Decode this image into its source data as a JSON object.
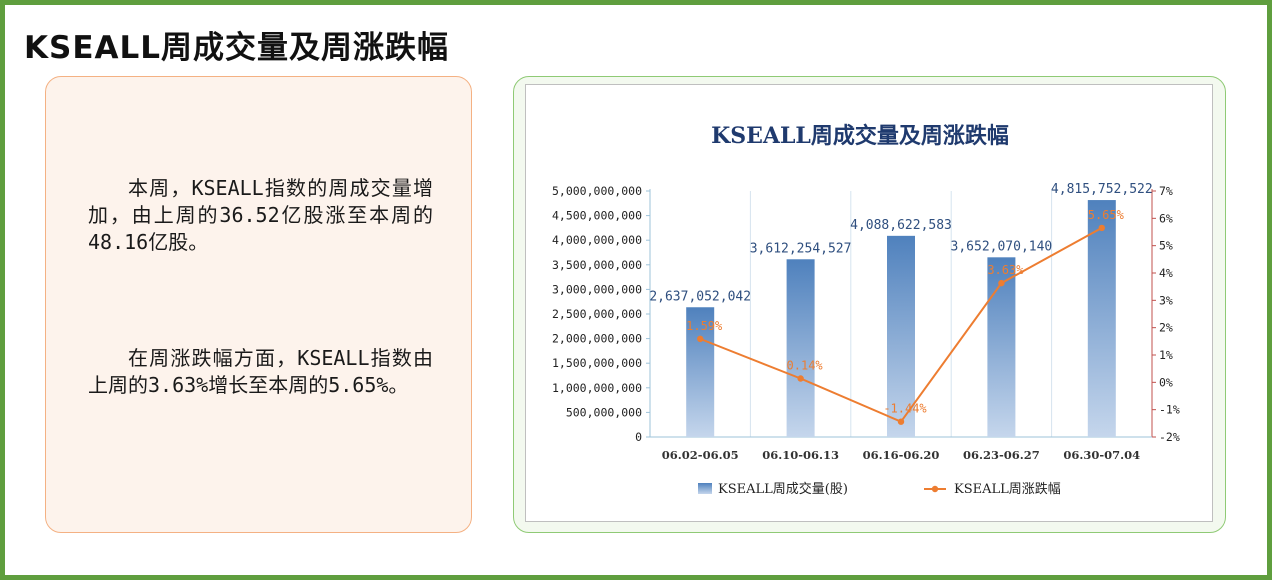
{
  "page": {
    "title": "KSEALL周成交量及周涨跌幅"
  },
  "commentary": {
    "paragraph_1": "本周，KSEALL指数的周成交量增加，由上周的36.52亿股涨至本周的48.16亿股。",
    "paragraph_2": "在周涨跌幅方面，KSEALL指数由上周的3.63%增长至本周的5.65%。"
  },
  "colors": {
    "bar_top": "#4f81bd",
    "bar_bottom": "#c5d6ec",
    "line": "#ed7d31",
    "bar_label": "#2f4f7f",
    "title": "#1f3a6e",
    "right_axis": "#c0504d"
  },
  "chart_data": {
    "type": "bar",
    "title": "KSEALL周成交量及周涨跌幅",
    "categories": [
      "06.02-06.05",
      "06.10-06.13",
      "06.16-06.20",
      "06.23-06.27",
      "06.30-07.04"
    ],
    "series": [
      {
        "name": "KSEALL周成交量(股)",
        "type": "bar",
        "axis": "left",
        "values": [
          2637052042,
          3612254527,
          4088622583,
          3652070140,
          4815752522
        ],
        "labels": [
          "2,637,052,042",
          "3,612,254,527",
          "4,088,622,583",
          "3,652,070,140",
          "4,815,752,522"
        ]
      },
      {
        "name": "KSEALL周涨跌幅",
        "type": "line",
        "axis": "right",
        "values": [
          1.59,
          0.14,
          -1.44,
          3.63,
          5.65
        ],
        "labels": [
          "1.59%",
          "0.14%",
          "-1.44%",
          "3.63%",
          "5.65%"
        ]
      }
    ],
    "y_left": {
      "range": [
        0,
        5000000000
      ],
      "ticks": [
        0,
        500000000,
        1000000000,
        1500000000,
        2000000000,
        2500000000,
        3000000000,
        3500000000,
        4000000000,
        4500000000,
        5000000000
      ],
      "tick_labels": [
        "0",
        "500,000,000",
        "1,000,000,000",
        "1,500,000,000",
        "2,000,000,000",
        "2,500,000,000",
        "3,000,000,000",
        "3,500,000,000",
        "4,000,000,000",
        "4,500,000,000",
        "5,000,000,000"
      ]
    },
    "y_right": {
      "range": [
        -2,
        7
      ],
      "ticks": [
        -2,
        -1,
        0,
        1,
        2,
        3,
        4,
        5,
        6,
        7
      ],
      "tick_labels": [
        "-2%",
        "-1%",
        "0%",
        "1%",
        "2%",
        "3%",
        "4%",
        "5%",
        "6%",
        "7%"
      ]
    },
    "legend_position": "bottom",
    "grid": "vertical category separators"
  }
}
